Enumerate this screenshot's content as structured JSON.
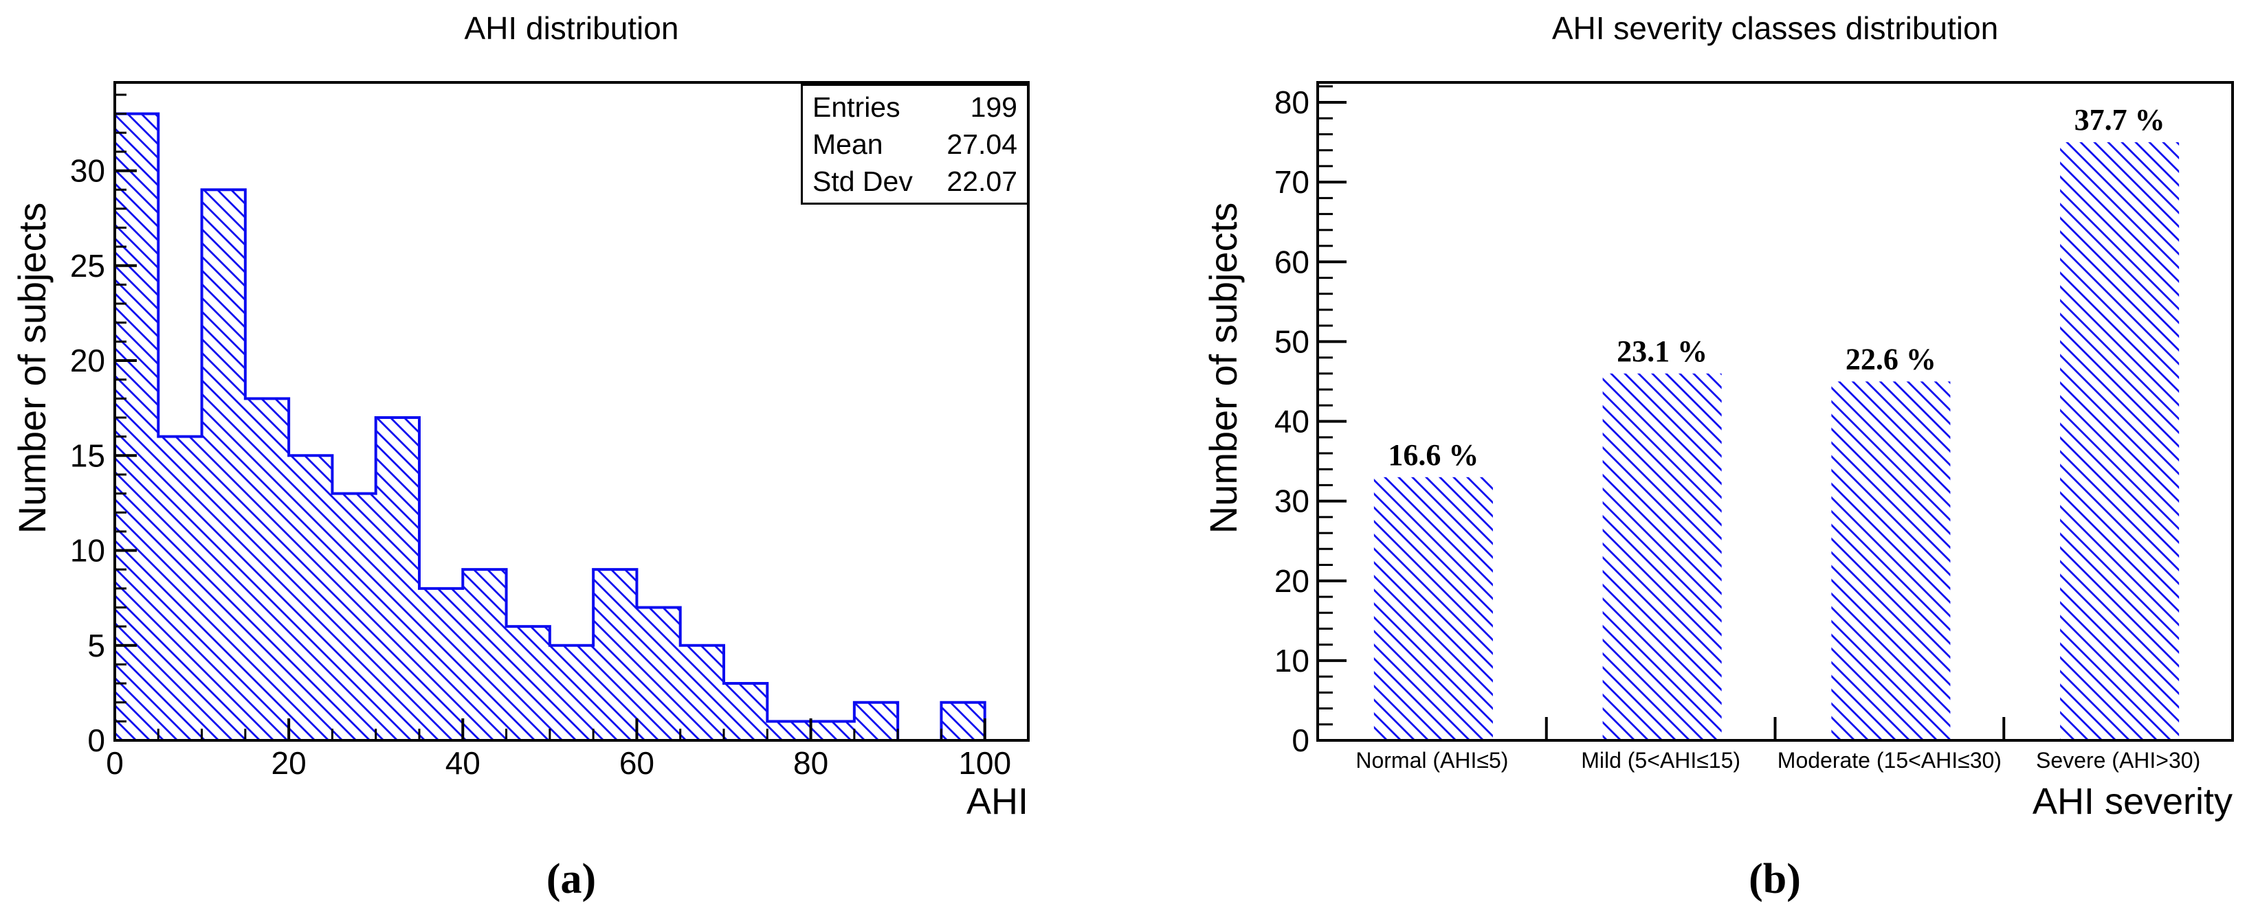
{
  "colors": {
    "accent_blue": "#0c0cf0",
    "axis_black": "#000000",
    "background": "#ffffff"
  },
  "chart_data": [
    {
      "type": "bar",
      "subtype": "histogram",
      "title": "AHI distribution",
      "xlabel": "AHI",
      "ylabel": "Number of subjects",
      "caption": "(a)",
      "bin_start": 0,
      "bin_width": 5,
      "values": [
        33,
        16,
        29,
        18,
        15,
        13,
        17,
        8,
        9,
        6,
        5,
        9,
        7,
        5,
        3,
        1,
        1,
        2,
        0,
        2
      ],
      "xlim": [
        0,
        105
      ],
      "ylim": [
        0,
        34.65
      ],
      "xticks": [
        0,
        20,
        40,
        60,
        80,
        100
      ],
      "xtick_minor_step": 5,
      "yticks": [
        0,
        5,
        10,
        15,
        20,
        25,
        30
      ],
      "ytick_minor_step": 1,
      "grid": false,
      "legend": null,
      "stats_box": {
        "rows": [
          [
            "Entries",
            "199"
          ],
          [
            "Mean",
            "27.04"
          ],
          [
            "Std Dev",
            "22.07"
          ]
        ]
      }
    },
    {
      "type": "bar",
      "title": "AHI severity classes distribution",
      "xlabel": "AHI severity",
      "ylabel": "Number of subjects",
      "caption": "(b)",
      "categories": [
        "Normal (AHI≤5)",
        "Mild (5<AHI≤15)",
        "Moderate (15<AHI≤30)",
        "Severe (AHI>30)"
      ],
      "values": [
        33,
        46,
        45,
        75
      ],
      "bar_labels": [
        "16.6 %",
        "23.1 %",
        "22.6 %",
        "37.7 %"
      ],
      "ylim": [
        0,
        82.5
      ],
      "yticks": [
        0,
        10,
        20,
        30,
        40,
        50,
        60,
        70,
        80
      ],
      "ytick_minor_step": 2,
      "grid": false,
      "legend": null
    }
  ]
}
